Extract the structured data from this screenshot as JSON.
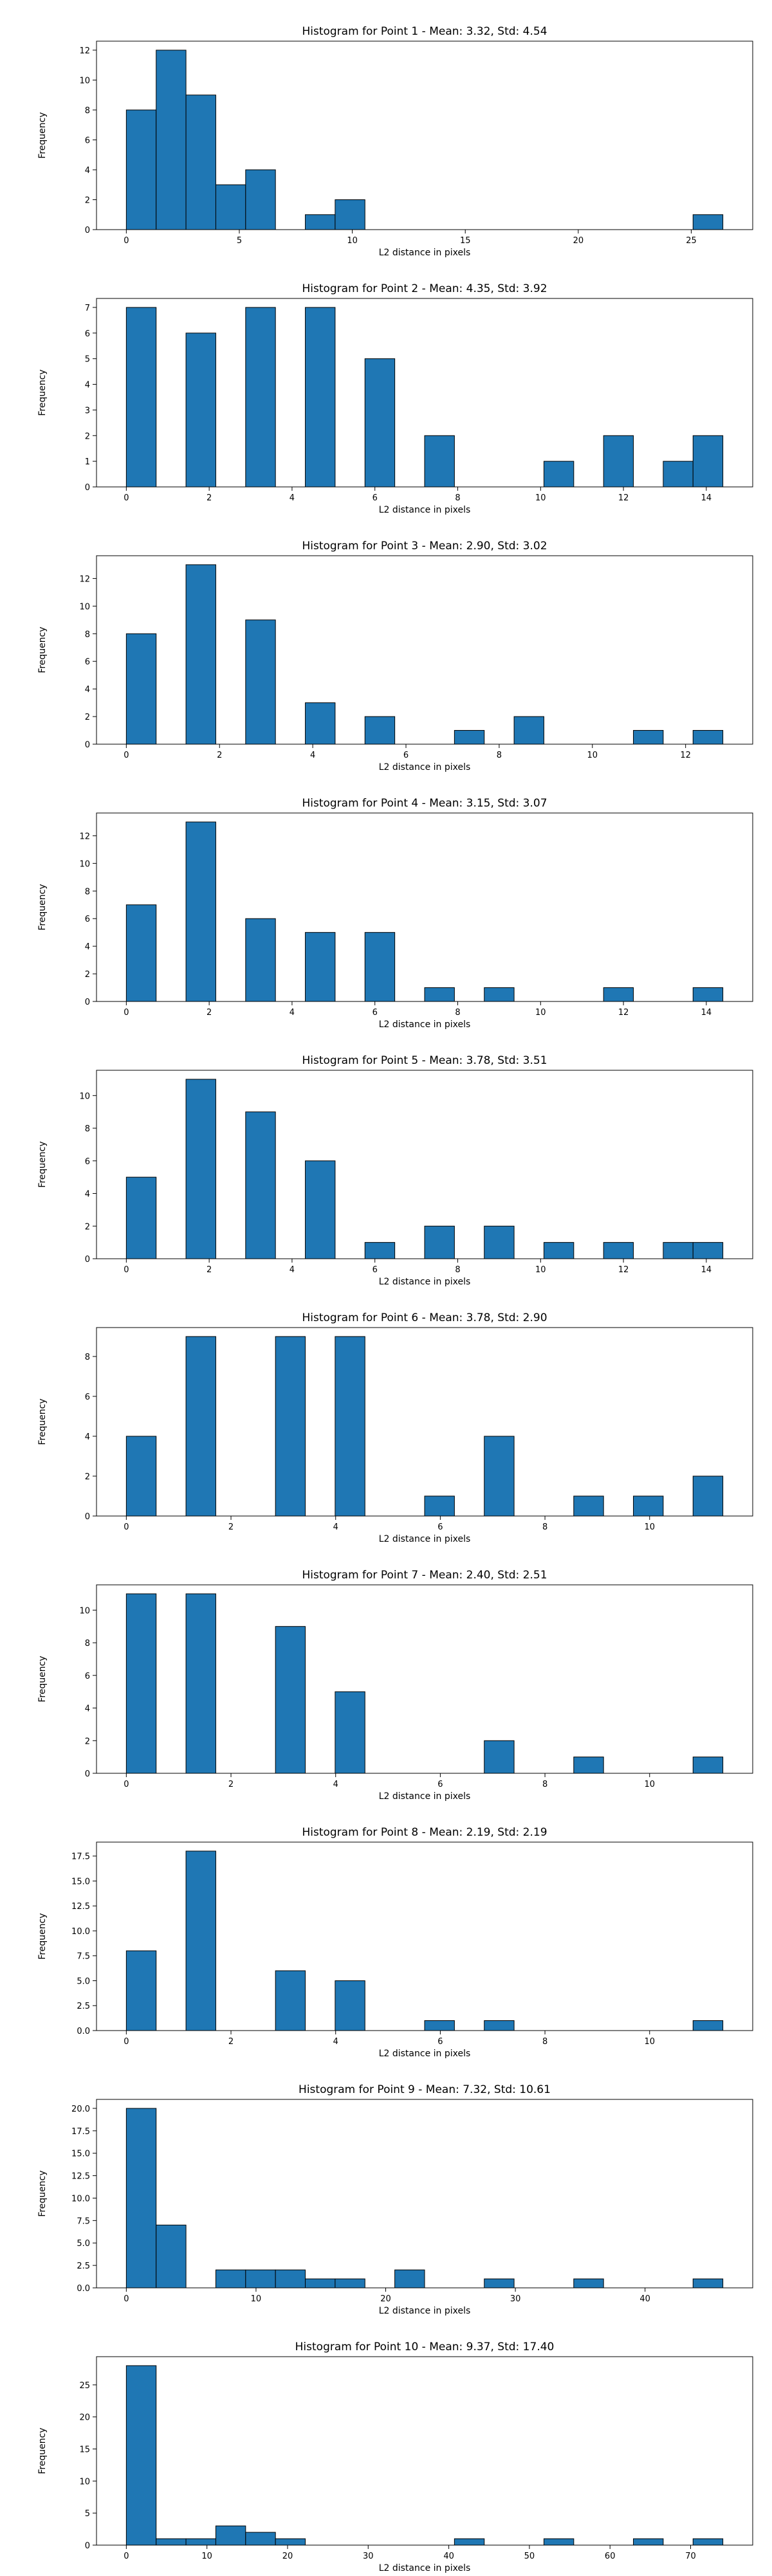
{
  "chart_data": [
    {
      "type": "bar",
      "title": "Histogram for Point 1 - Mean: 3.32, Std: 4.54",
      "xlabel": "L2 distance in pixels",
      "ylabel": "Frequency",
      "xlim": [
        -1.32,
        27.72
      ],
      "ylim": [
        0,
        12.6
      ],
      "xticks": [
        0,
        5,
        10,
        15,
        20,
        25
      ],
      "xtick_labels": [
        "0",
        "5",
        "10",
        "15",
        "20",
        "25"
      ],
      "yticks": [
        0,
        2,
        4,
        6,
        8,
        10,
        12
      ],
      "ytick_labels": [
        "0",
        "2",
        "4",
        "6",
        "8",
        "10",
        "12"
      ],
      "bins": [
        {
          "x0": 0.0,
          "x1": 1.32,
          "count": 8
        },
        {
          "x0": 1.32,
          "x1": 2.64,
          "count": 12
        },
        {
          "x0": 2.64,
          "x1": 3.96,
          "count": 9
        },
        {
          "x0": 3.96,
          "x1": 5.28,
          "count": 3
        },
        {
          "x0": 5.28,
          "x1": 6.6,
          "count": 4
        },
        {
          "x0": 7.92,
          "x1": 9.24,
          "count": 1
        },
        {
          "x0": 9.24,
          "x1": 10.56,
          "count": 2
        },
        {
          "x0": 25.08,
          "x1": 26.4,
          "count": 1
        }
      ]
    },
    {
      "type": "bar",
      "title": "Histogram for Point 2 - Mean: 4.35, Std: 3.92",
      "xlabel": "L2 distance in pixels",
      "ylabel": "Frequency",
      "xlim": [
        -0.72,
        15.12
      ],
      "ylim": [
        0,
        7.35
      ],
      "xticks": [
        0,
        2,
        4,
        6,
        8,
        10,
        12,
        14
      ],
      "xtick_labels": [
        "0",
        "2",
        "4",
        "6",
        "8",
        "10",
        "12",
        "14"
      ],
      "yticks": [
        0,
        1,
        2,
        3,
        4,
        5,
        6,
        7
      ],
      "ytick_labels": [
        "0",
        "1",
        "2",
        "3",
        "4",
        "5",
        "6",
        "7"
      ],
      "bins": [
        {
          "x0": 0.0,
          "x1": 0.72,
          "count": 7
        },
        {
          "x0": 1.44,
          "x1": 2.16,
          "count": 6
        },
        {
          "x0": 2.88,
          "x1": 3.6,
          "count": 7
        },
        {
          "x0": 4.32,
          "x1": 5.04,
          "count": 7
        },
        {
          "x0": 5.76,
          "x1": 6.48,
          "count": 5
        },
        {
          "x0": 7.2,
          "x1": 7.92,
          "count": 2
        },
        {
          "x0": 10.08,
          "x1": 10.8,
          "count": 1
        },
        {
          "x0": 11.52,
          "x1": 12.24,
          "count": 2
        },
        {
          "x0": 12.96,
          "x1": 13.68,
          "count": 1
        },
        {
          "x0": 13.68,
          "x1": 14.4,
          "count": 2
        }
      ]
    },
    {
      "type": "bar",
      "title": "Histogram for Point 3 - Mean: 2.90, Std: 3.02",
      "xlabel": "L2 distance in pixels",
      "ylabel": "Frequency",
      "xlim": [
        -0.64,
        13.44
      ],
      "ylim": [
        0,
        13.65
      ],
      "xticks": [
        0,
        2,
        4,
        6,
        8,
        10,
        12
      ],
      "xtick_labels": [
        "0",
        "2",
        "4",
        "6",
        "8",
        "10",
        "12"
      ],
      "yticks": [
        0,
        2,
        4,
        6,
        8,
        10,
        12
      ],
      "ytick_labels": [
        "0",
        "2",
        "4",
        "6",
        "8",
        "10",
        "12"
      ],
      "bins": [
        {
          "x0": 0.0,
          "x1": 0.64,
          "count": 8
        },
        {
          "x0": 1.28,
          "x1": 1.92,
          "count": 13
        },
        {
          "x0": 2.56,
          "x1": 3.2,
          "count": 9
        },
        {
          "x0": 3.84,
          "x1": 4.48,
          "count": 3
        },
        {
          "x0": 5.12,
          "x1": 5.76,
          "count": 2
        },
        {
          "x0": 7.04,
          "x1": 7.68,
          "count": 1
        },
        {
          "x0": 8.32,
          "x1": 8.96,
          "count": 2
        },
        {
          "x0": 10.88,
          "x1": 11.52,
          "count": 1
        },
        {
          "x0": 12.16,
          "x1": 12.8,
          "count": 1
        }
      ]
    },
    {
      "type": "bar",
      "title": "Histogram for Point 4 - Mean: 3.15, Std: 3.07",
      "xlabel": "L2 distance in pixels",
      "ylabel": "Frequency",
      "xlim": [
        -0.72,
        15.12
      ],
      "ylim": [
        0,
        13.65
      ],
      "xticks": [
        0,
        2,
        4,
        6,
        8,
        10,
        12,
        14
      ],
      "xtick_labels": [
        "0",
        "2",
        "4",
        "6",
        "8",
        "10",
        "12",
        "14"
      ],
      "yticks": [
        0,
        2,
        4,
        6,
        8,
        10,
        12
      ],
      "ytick_labels": [
        "0",
        "2",
        "4",
        "6",
        "8",
        "10",
        "12"
      ],
      "bins": [
        {
          "x0": 0.0,
          "x1": 0.72,
          "count": 7
        },
        {
          "x0": 1.44,
          "x1": 2.16,
          "count": 13
        },
        {
          "x0": 2.88,
          "x1": 3.6,
          "count": 6
        },
        {
          "x0": 4.32,
          "x1": 5.04,
          "count": 5
        },
        {
          "x0": 5.76,
          "x1": 6.48,
          "count": 5
        },
        {
          "x0": 7.2,
          "x1": 7.92,
          "count": 1
        },
        {
          "x0": 8.64,
          "x1": 9.36,
          "count": 1
        },
        {
          "x0": 11.52,
          "x1": 12.24,
          "count": 1
        },
        {
          "x0": 13.68,
          "x1": 14.4,
          "count": 1
        }
      ]
    },
    {
      "type": "bar",
      "title": "Histogram for Point 5 - Mean: 3.78, Std: 3.51",
      "xlabel": "L2 distance in pixels",
      "ylabel": "Frequency",
      "xlim": [
        -0.72,
        15.12
      ],
      "ylim": [
        0,
        11.55
      ],
      "xticks": [
        0,
        2,
        4,
        6,
        8,
        10,
        12,
        14
      ],
      "xtick_labels": [
        "0",
        "2",
        "4",
        "6",
        "8",
        "10",
        "12",
        "14"
      ],
      "yticks": [
        0,
        2,
        4,
        6,
        8,
        10
      ],
      "ytick_labels": [
        "0",
        "2",
        "4",
        "6",
        "8",
        "10"
      ],
      "bins": [
        {
          "x0": 0.0,
          "x1": 0.72,
          "count": 5
        },
        {
          "x0": 1.44,
          "x1": 2.16,
          "count": 11
        },
        {
          "x0": 2.88,
          "x1": 3.6,
          "count": 9
        },
        {
          "x0": 4.32,
          "x1": 5.04,
          "count": 6
        },
        {
          "x0": 5.76,
          "x1": 6.48,
          "count": 1
        },
        {
          "x0": 7.2,
          "x1": 7.92,
          "count": 2
        },
        {
          "x0": 8.64,
          "x1": 9.36,
          "count": 2
        },
        {
          "x0": 10.08,
          "x1": 10.8,
          "count": 1
        },
        {
          "x0": 11.52,
          "x1": 12.24,
          "count": 1
        },
        {
          "x0": 12.96,
          "x1": 13.68,
          "count": 1
        },
        {
          "x0": 13.68,
          "x1": 14.4,
          "count": 1
        }
      ]
    },
    {
      "type": "bar",
      "title": "Histogram for Point 6 - Mean: 3.78, Std: 2.90",
      "xlabel": "L2 distance in pixels",
      "ylabel": "Frequency",
      "xlim": [
        -0.57,
        11.97
      ],
      "ylim": [
        0,
        9.45
      ],
      "xticks": [
        0,
        2,
        4,
        6,
        8,
        10
      ],
      "xtick_labels": [
        "0",
        "2",
        "4",
        "6",
        "8",
        "10"
      ],
      "yticks": [
        0,
        2,
        4,
        6,
        8
      ],
      "ytick_labels": [
        "0",
        "2",
        "4",
        "6",
        "8"
      ],
      "bins": [
        {
          "x0": 0.0,
          "x1": 0.57,
          "count": 4
        },
        {
          "x0": 1.14,
          "x1": 1.71,
          "count": 9
        },
        {
          "x0": 2.85,
          "x1": 3.42,
          "count": 9
        },
        {
          "x0": 3.99,
          "x1": 4.56,
          "count": 9
        },
        {
          "x0": 5.7,
          "x1": 6.27,
          "count": 1
        },
        {
          "x0": 6.84,
          "x1": 7.41,
          "count": 4
        },
        {
          "x0": 8.55,
          "x1": 9.12,
          "count": 1
        },
        {
          "x0": 9.69,
          "x1": 10.26,
          "count": 1
        },
        {
          "x0": 10.83,
          "x1": 11.4,
          "count": 2
        }
      ]
    },
    {
      "type": "bar",
      "title": "Histogram for Point 7 - Mean: 2.40, Std: 2.51",
      "xlabel": "L2 distance in pixels",
      "ylabel": "Frequency",
      "xlim": [
        -0.57,
        11.97
      ],
      "ylim": [
        0,
        11.55
      ],
      "xticks": [
        0,
        2,
        4,
        6,
        8,
        10
      ],
      "xtick_labels": [
        "0",
        "2",
        "4",
        "6",
        "8",
        "10"
      ],
      "yticks": [
        0,
        2,
        4,
        6,
        8,
        10
      ],
      "ytick_labels": [
        "0",
        "2",
        "4",
        "6",
        "8",
        "10"
      ],
      "bins": [
        {
          "x0": 0.0,
          "x1": 0.57,
          "count": 11
        },
        {
          "x0": 1.14,
          "x1": 1.71,
          "count": 11
        },
        {
          "x0": 2.85,
          "x1": 3.42,
          "count": 9
        },
        {
          "x0": 3.99,
          "x1": 4.56,
          "count": 5
        },
        {
          "x0": 6.84,
          "x1": 7.41,
          "count": 2
        },
        {
          "x0": 8.55,
          "x1": 9.12,
          "count": 1
        },
        {
          "x0": 10.83,
          "x1": 11.4,
          "count": 1
        }
      ]
    },
    {
      "type": "bar",
      "title": "Histogram for Point 8 - Mean: 2.19, Std: 2.19",
      "xlabel": "L2 distance in pixels",
      "ylabel": "Frequency",
      "xlim": [
        -0.57,
        11.97
      ],
      "ylim": [
        0,
        18.9
      ],
      "xticks": [
        0,
        2,
        4,
        6,
        8,
        10
      ],
      "xtick_labels": [
        "0",
        "2",
        "4",
        "6",
        "8",
        "10"
      ],
      "yticks": [
        0,
        2.5,
        5,
        7.5,
        10,
        12.5,
        15,
        17.5
      ],
      "ytick_labels": [
        "0.0",
        "2.5",
        "5.0",
        "7.5",
        "10.0",
        "12.5",
        "15.0",
        "17.5"
      ],
      "bins": [
        {
          "x0": 0.0,
          "x1": 0.57,
          "count": 8
        },
        {
          "x0": 1.14,
          "x1": 1.71,
          "count": 18
        },
        {
          "x0": 2.85,
          "x1": 3.42,
          "count": 6
        },
        {
          "x0": 3.99,
          "x1": 4.56,
          "count": 5
        },
        {
          "x0": 5.7,
          "x1": 6.27,
          "count": 1
        },
        {
          "x0": 6.84,
          "x1": 7.41,
          "count": 1
        },
        {
          "x0": 10.83,
          "x1": 11.4,
          "count": 1
        }
      ]
    },
    {
      "type": "bar",
      "title": "Histogram for Point 9 - Mean: 7.32, Std: 10.61",
      "xlabel": "L2 distance in pixels",
      "ylabel": "Frequency",
      "xlim": [
        -2.3,
        48.3
      ],
      "ylim": [
        0,
        21.0
      ],
      "xticks": [
        0,
        10,
        20,
        30,
        40
      ],
      "xtick_labels": [
        "0",
        "10",
        "20",
        "30",
        "40"
      ],
      "yticks": [
        0,
        2.5,
        5,
        7.5,
        10,
        12.5,
        15,
        17.5,
        20
      ],
      "ytick_labels": [
        "0.0",
        "2.5",
        "5.0",
        "7.5",
        "10.0",
        "12.5",
        "15.0",
        "17.5",
        "20.0"
      ],
      "bins": [
        {
          "x0": 0.0,
          "x1": 2.3,
          "count": 20
        },
        {
          "x0": 2.3,
          "x1": 4.6,
          "count": 7
        },
        {
          "x0": 6.9,
          "x1": 9.2,
          "count": 2
        },
        {
          "x0": 9.2,
          "x1": 11.5,
          "count": 2
        },
        {
          "x0": 11.5,
          "x1": 13.8,
          "count": 2
        },
        {
          "x0": 13.8,
          "x1": 16.1,
          "count": 1
        },
        {
          "x0": 16.1,
          "x1": 18.4,
          "count": 1
        },
        {
          "x0": 20.7,
          "x1": 23.0,
          "count": 2
        },
        {
          "x0": 27.6,
          "x1": 29.9,
          "count": 1
        },
        {
          "x0": 34.5,
          "x1": 36.8,
          "count": 1
        },
        {
          "x0": 43.7,
          "x1": 46.0,
          "count": 1
        }
      ]
    },
    {
      "type": "bar",
      "title": "Histogram for Point 10 - Mean: 9.37, Std: 17.40",
      "xlabel": "L2 distance in pixels",
      "ylabel": "Frequency",
      "xlim": [
        -3.7,
        77.7
      ],
      "ylim": [
        0,
        29.4
      ],
      "xticks": [
        0,
        10,
        20,
        30,
        40,
        50,
        60,
        70
      ],
      "xtick_labels": [
        "0",
        "10",
        "20",
        "30",
        "40",
        "50",
        "60",
        "70"
      ],
      "yticks": [
        0,
        5,
        10,
        15,
        20,
        25
      ],
      "ytick_labels": [
        "0",
        "5",
        "10",
        "15",
        "20",
        "25"
      ],
      "bins": [
        {
          "x0": 0.0,
          "x1": 3.7,
          "count": 28
        },
        {
          "x0": 3.7,
          "x1": 7.4,
          "count": 1
        },
        {
          "x0": 7.4,
          "x1": 11.1,
          "count": 1
        },
        {
          "x0": 11.1,
          "x1": 14.8,
          "count": 3
        },
        {
          "x0": 14.8,
          "x1": 18.5,
          "count": 2
        },
        {
          "x0": 18.5,
          "x1": 22.2,
          "count": 1
        },
        {
          "x0": 40.7,
          "x1": 44.4,
          "count": 1
        },
        {
          "x0": 51.8,
          "x1": 55.5,
          "count": 1
        },
        {
          "x0": 62.9,
          "x1": 66.6,
          "count": 1
        },
        {
          "x0": 70.3,
          "x1": 74.0,
          "count": 1
        }
      ]
    }
  ]
}
